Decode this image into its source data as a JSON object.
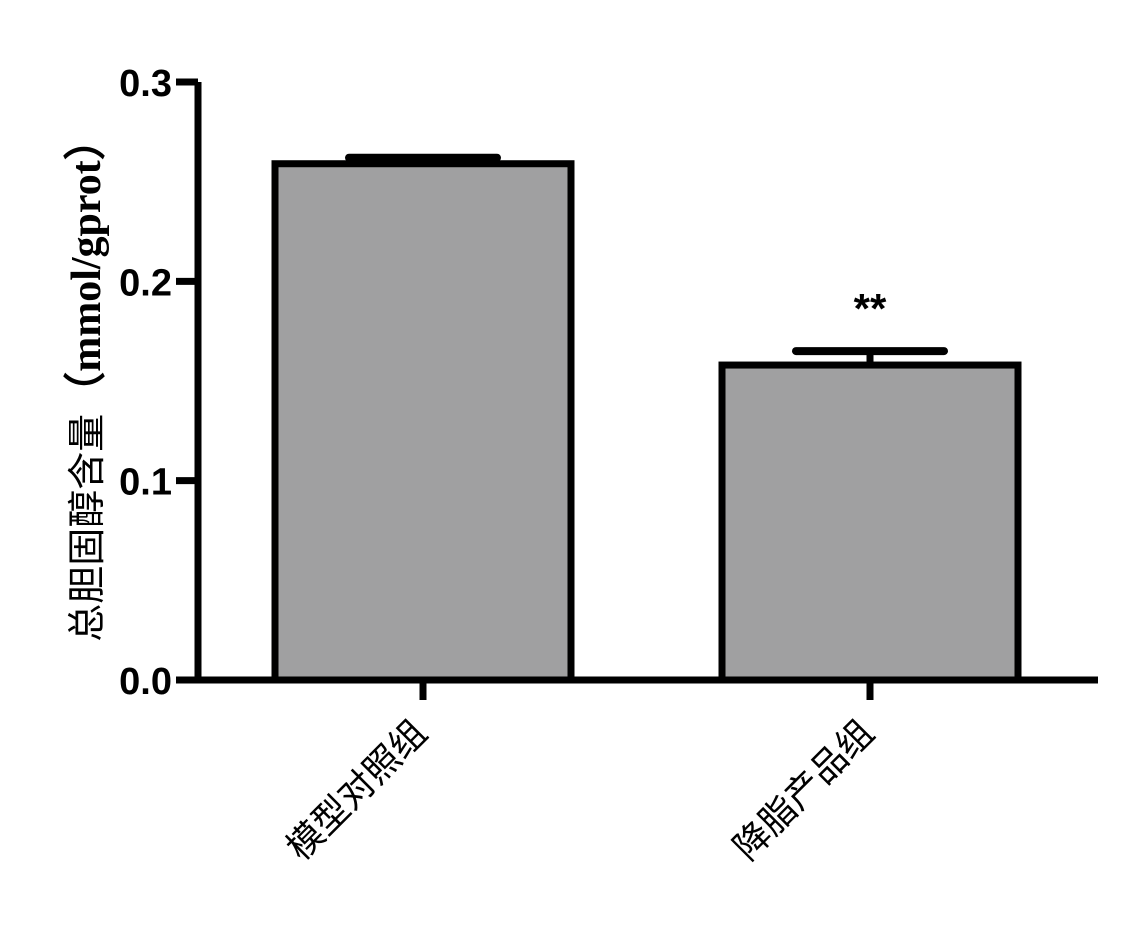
{
  "chart_data": {
    "type": "bar",
    "categories": [
      "模型对照组",
      "降脂产品组"
    ],
    "values": [
      0.259,
      0.158
    ],
    "errors": [
      0.003,
      0.007
    ],
    "annotations": [
      "",
      "**"
    ],
    "ylabel": "总胆固醇含量",
    "yunit": "（mmol/gprot）",
    "ylim": [
      0,
      0.3
    ],
    "yticks": [
      "0.0",
      "0.1",
      "0.2",
      "0.3"
    ],
    "grid": false,
    "bar_color": "#a0a0a1",
    "edge_color": "#000000"
  }
}
